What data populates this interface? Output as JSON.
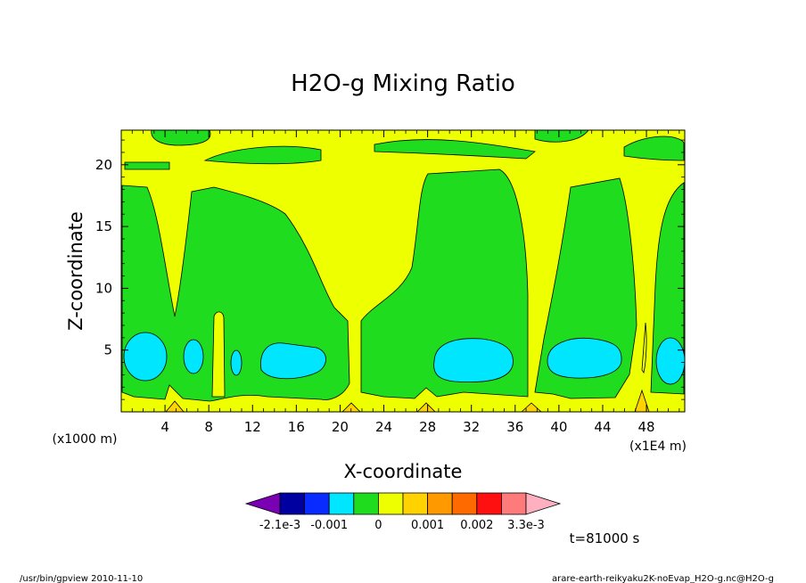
{
  "chart_data": {
    "type": "heatmap",
    "title": "H2O-g Mixing Ratio",
    "xlabel": "X-coordinate",
    "ylabel": "Z-coordinate",
    "x_unit_left": "(x1000 m)",
    "x_unit_right": "(x1E4 m)",
    "xlim": [
      0,
      51.5
    ],
    "ylim": [
      0,
      22.8
    ],
    "x_ticks": [
      "4",
      "8",
      "12",
      "16",
      "20",
      "24",
      "28",
      "32",
      "36",
      "40",
      "44",
      "48"
    ],
    "y_ticks": [
      "5",
      "10",
      "15",
      "20"
    ],
    "colorbar": {
      "levels": [
        "-2.1e-3",
        "-0.001",
        "0",
        "0.001",
        "0.002",
        "3.3e-3"
      ],
      "colors": [
        "#7a00b4",
        "#0000a0",
        "#0a2bff",
        "#00e6ff",
        "#1fdc1f",
        "#eeff00",
        "#ffd200",
        "#ff9900",
        "#ff6a00",
        "#ff1010",
        "#ff7a7a",
        "#ffb0c0"
      ]
    },
    "field_colors": {
      "background": "#eeff00",
      "moist": "#1fdc1f",
      "very_moist": "#00e6ff",
      "peaks": "#ffd200"
    },
    "time_label": "t=81000 s"
  },
  "footer": {
    "left": "/usr/bin/gpview  2010-11-10",
    "right": "arare-earth-reikyaku2K-noEvap_H2O-g.nc@H2O-g"
  }
}
